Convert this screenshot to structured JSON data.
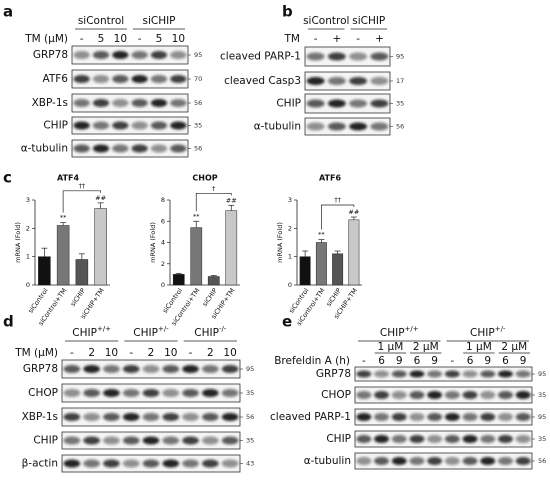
{
  "panel_labels": [
    "a",
    "b",
    "c",
    "d",
    "e"
  ],
  "blots": [
    {
      "groups": [
        "siControl",
        "siCHIP"
      ],
      "treatment": "TM (μM)",
      "lanes": [
        "-",
        "5",
        "10",
        "-",
        "5",
        "10"
      ],
      "rows": [
        {
          "name": "GRP78",
          "mw": "95"
        },
        {
          "name": "ATF6",
          "mw": "70"
        },
        {
          "name": "XBP-1s",
          "mw": "56"
        },
        {
          "name": "CHIP",
          "mw": "35"
        },
        {
          "name": "α-tubulin",
          "mw": "56"
        }
      ]
    },
    {
      "groups": [
        "siControl",
        "siCHIP"
      ],
      "treatment": "TM",
      "lanes": [
        "-",
        "+",
        "-",
        "+"
      ],
      "rows": [
        {
          "name": "cleaved PARP-1",
          "mw": "95"
        },
        {
          "name": "cleaved Casp3",
          "mw": "17"
        },
        {
          "name": "CHIP",
          "mw": "35"
        },
        {
          "name": "α-tubulin",
          "mw": "56"
        }
      ]
    },
    {
      "groups": [
        {
          "name": "CHIP",
          "sup": "+/+"
        },
        {
          "name": "CHIP",
          "sup": "+/-"
        },
        {
          "name": "CHIP",
          "sup": "-/-"
        }
      ],
      "treatment": "TM (μM)",
      "lanes": [
        "-",
        "2",
        "10",
        "-",
        "2",
        "10",
        "-",
        "2",
        "10"
      ],
      "rows": [
        {
          "name": "GRP78",
          "mw": "95"
        },
        {
          "name": "CHOP",
          "mw": "35"
        },
        {
          "name": "XBP-1s",
          "mw": "56"
        },
        {
          "name": "CHIP",
          "mw": "35"
        },
        {
          "name": "β-actin",
          "mw": "43"
        }
      ]
    },
    {
      "groups": [
        {
          "name": "CHIP",
          "sup": "+/+"
        },
        {
          "name": "CHIP",
          "sup": "+/-"
        }
      ],
      "doses": [
        "1 μM",
        "2 μM",
        "1 μM",
        "2 μM"
      ],
      "treatment": "Brefeldin A (h)",
      "lanes": [
        "-",
        "6",
        "9",
        "6",
        "9",
        "-",
        "6",
        "9",
        "6",
        "9"
      ],
      "rows": [
        {
          "name": "GRP78",
          "mw": "95"
        },
        {
          "name": "CHOP",
          "mw": "35"
        },
        {
          "name": "cleaved PARP-1",
          "mw": "95"
        },
        {
          "name": "CHIP",
          "mw": "35"
        },
        {
          "name": "α-tubulin",
          "mw": "56"
        }
      ]
    }
  ],
  "chart_data": [
    {
      "type": "bar",
      "title": "ATF4",
      "y_label": "mRNA (Fold)",
      "categories": [
        "siControl",
        "siControl+TM",
        "siCHIP",
        "siCHIP+TM"
      ],
      "values": [
        1.0,
        2.1,
        0.9,
        2.7
      ],
      "errors": [
        0.3,
        0.1,
        0.2,
        0.2
      ],
      "colors": [
        "#111111",
        "#777777",
        "#555555",
        "#c8c8c8"
      ],
      "ylim": [
        0,
        3
      ],
      "yticks": [
        0,
        1,
        2,
        3
      ],
      "annotations": [
        "**",
        "##",
        "††"
      ]
    },
    {
      "type": "bar",
      "title": "CHOP",
      "y_label": "mRNA (Fold)",
      "categories": [
        "siControl",
        "siControl+TM",
        "siCHIP",
        "siCHIP+TM"
      ],
      "values": [
        1.0,
        5.4,
        0.8,
        7.0
      ],
      "errors": [
        0.1,
        0.6,
        0.1,
        0.5
      ],
      "colors": [
        "#111111",
        "#777777",
        "#555555",
        "#c8c8c8"
      ],
      "ylim": [
        0,
        8
      ],
      "yticks": [
        0,
        2,
        4,
        6,
        8
      ],
      "annotations": [
        "**",
        "##",
        "†"
      ]
    },
    {
      "type": "bar",
      "title": "ATF6",
      "y_label": "mRNA (Fold)",
      "categories": [
        "siControl",
        "siControl+TM",
        "siCHIP",
        "siCHIP+TM"
      ],
      "values": [
        1.0,
        1.5,
        1.1,
        2.3
      ],
      "errors": [
        0.2,
        0.1,
        0.1,
        0.1
      ],
      "colors": [
        "#111111",
        "#777777",
        "#555555",
        "#c8c8c8"
      ],
      "ylim": [
        0,
        3
      ],
      "yticks": [
        0,
        1,
        2,
        3
      ],
      "annotations": [
        "**",
        "##",
        "††"
      ]
    }
  ]
}
